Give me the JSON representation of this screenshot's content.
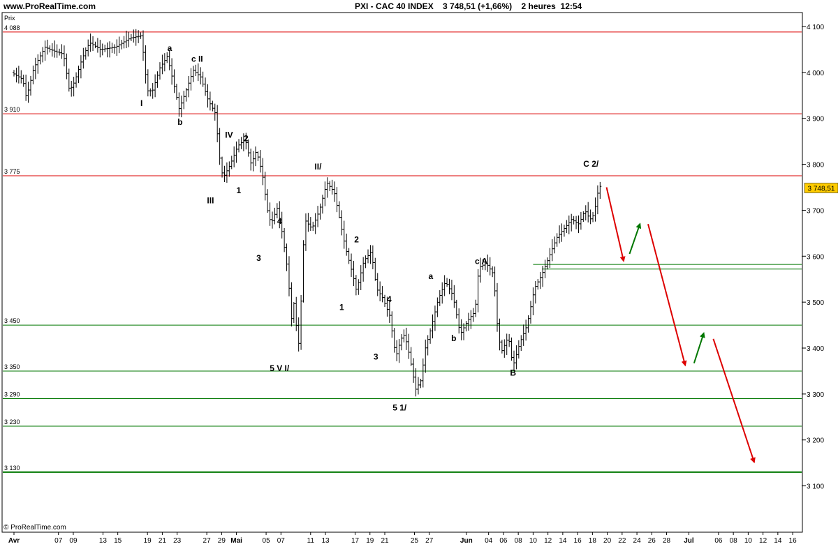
{
  "header": {
    "site": "www.ProRealTime.com",
    "instrument": "PXI - CAC 40 INDEX",
    "price": "3 748,51",
    "change": "(+1,66%)",
    "timeframe": "2 heures",
    "time": "12:54"
  },
  "footer": {
    "copyright": "© ProRealTime.com"
  },
  "chart_data": {
    "type": "candlestick-ohlc",
    "yaxis_title": "Prix",
    "ylim": [
      3090,
      4115
    ],
    "y_ticks": [
      {
        "v": 4100,
        "label": "4 100"
      },
      {
        "v": 4000,
        "label": "4 000"
      },
      {
        "v": 3900,
        "label": "3 900"
      },
      {
        "v": 3800,
        "label": "3 800"
      },
      {
        "v": 3700,
        "label": "3 700"
      },
      {
        "v": 3600,
        "label": "3 600"
      },
      {
        "v": 3500,
        "label": "3 500"
      },
      {
        "v": 3400,
        "label": "3 400"
      },
      {
        "v": 3300,
        "label": "3 300"
      },
      {
        "v": 3200,
        "label": "3 200"
      },
      {
        "v": 3100,
        "label": "3 100"
      }
    ],
    "last_price": {
      "value": 3748.51,
      "label": "3 748,51",
      "color": "#ffcc00"
    },
    "x_ticks": [
      {
        "d": 0,
        "label": "Avr"
      },
      {
        "d": 6,
        "label": "07"
      },
      {
        "d": 8,
        "label": "09"
      },
      {
        "d": 12,
        "label": "13"
      },
      {
        "d": 14,
        "label": "15"
      },
      {
        "d": 18,
        "label": "19"
      },
      {
        "d": 20,
        "label": "21"
      },
      {
        "d": 22,
        "label": "23"
      },
      {
        "d": 26,
        "label": "27"
      },
      {
        "d": 28,
        "label": "29"
      },
      {
        "d": 30,
        "label": "Mai"
      },
      {
        "d": 34,
        "label": "05"
      },
      {
        "d": 36,
        "label": "07"
      },
      {
        "d": 40,
        "label": "11"
      },
      {
        "d": 42,
        "label": "13"
      },
      {
        "d": 46,
        "label": "17"
      },
      {
        "d": 48,
        "label": "19"
      },
      {
        "d": 50,
        "label": "21"
      },
      {
        "d": 54,
        "label": "25"
      },
      {
        "d": 56,
        "label": "27"
      },
      {
        "d": 61,
        "label": "Jun"
      },
      {
        "d": 64,
        "label": "04"
      },
      {
        "d": 66,
        "label": "06"
      },
      {
        "d": 68,
        "label": "08"
      },
      {
        "d": 70,
        "label": "10"
      },
      {
        "d": 72,
        "label": "12"
      },
      {
        "d": 74,
        "label": "14"
      },
      {
        "d": 76,
        "label": "16"
      },
      {
        "d": 78,
        "label": "18"
      },
      {
        "d": 80,
        "label": "20"
      },
      {
        "d": 82,
        "label": "22"
      },
      {
        "d": 84,
        "label": "24"
      },
      {
        "d": 86,
        "label": "26"
      },
      {
        "d": 88,
        "label": "28"
      },
      {
        "d": 91,
        "label": "Jul"
      },
      {
        "d": 95,
        "label": "06"
      },
      {
        "d": 97,
        "label": "08"
      },
      {
        "d": 99,
        "label": "10"
      },
      {
        "d": 101,
        "label": "12"
      },
      {
        "d": 103,
        "label": "14"
      },
      {
        "d": 105,
        "label": "16"
      }
    ],
    "red_levels": [
      {
        "v": 4088,
        "label": "4 088"
      },
      {
        "v": 3910,
        "label": "3 910"
      },
      {
        "v": 3775,
        "label": "3 775"
      }
    ],
    "green_levels": [
      {
        "v": 3450,
        "label": "3 450"
      },
      {
        "v": 3350,
        "label": "3 350"
      },
      {
        "v": 3290,
        "label": "3 290"
      },
      {
        "v": 3230,
        "label": "3 230"
      },
      {
        "v": 3130,
        "label": "3 130"
      }
    ],
    "green_short_levels": [
      {
        "v": 3582,
        "from_d": 70.0
      },
      {
        "v": 3572,
        "from_d": 71.2
      }
    ],
    "price_path": [
      [
        0,
        4000
      ],
      [
        1.5,
        3985
      ],
      [
        2,
        3945
      ],
      [
        3,
        4010
      ],
      [
        4.5,
        4055
      ],
      [
        6,
        4045
      ],
      [
        7,
        4040
      ],
      [
        7.8,
        3960
      ],
      [
        8.5,
        3980
      ],
      [
        9.5,
        4030
      ],
      [
        10.5,
        4065
      ],
      [
        12,
        4050
      ],
      [
        14,
        4055
      ],
      [
        16,
        4075
      ],
      [
        17.5,
        4080
      ],
      [
        18.3,
        3960
      ],
      [
        19,
        3960
      ],
      [
        20,
        4010
      ],
      [
        21,
        4035
      ],
      [
        22,
        3965
      ],
      [
        22.6,
        3920
      ],
      [
        23.5,
        3960
      ],
      [
        24.5,
        4005
      ],
      [
        25.5,
        3990
      ],
      [
        26.5,
        3940
      ],
      [
        27.5,
        3910
      ],
      [
        28,
        3820
      ],
      [
        28.5,
        3770
      ],
      [
        29.5,
        3800
      ],
      [
        30.5,
        3840
      ],
      [
        31.5,
        3855
      ],
      [
        32.3,
        3800
      ],
      [
        33,
        3830
      ],
      [
        33.8,
        3780
      ],
      [
        34.5,
        3700
      ],
      [
        35,
        3670
      ],
      [
        35.8,
        3705
      ],
      [
        36.5,
        3650
      ],
      [
        37.3,
        3560
      ],
      [
        37.7,
        3460
      ],
      [
        38.2,
        3510
      ],
      [
        38.6,
        3380
      ],
      [
        39,
        3490
      ],
      [
        39.5,
        3680
      ],
      [
        40.5,
        3660
      ],
      [
        41.5,
        3700
      ],
      [
        42.5,
        3760
      ],
      [
        43.5,
        3740
      ],
      [
        44,
        3700
      ],
      [
        45,
        3620
      ],
      [
        46,
        3560
      ],
      [
        46.5,
        3525
      ],
      [
        47.5,
        3590
      ],
      [
        48.5,
        3610
      ],
      [
        49.2,
        3530
      ],
      [
        50,
        3510
      ],
      [
        51,
        3470
      ],
      [
        51.8,
        3380
      ],
      [
        52.5,
        3420
      ],
      [
        53,
        3430
      ],
      [
        53.7,
        3380
      ],
      [
        54.5,
        3310
      ],
      [
        55.2,
        3330
      ],
      [
        55.8,
        3400
      ],
      [
        56.5,
        3440
      ],
      [
        57.5,
        3505
      ],
      [
        58.5,
        3545
      ],
      [
        59.5,
        3515
      ],
      [
        60.5,
        3430
      ],
      [
        61.5,
        3460
      ],
      [
        62.5,
        3480
      ],
      [
        63,
        3575
      ],
      [
        64,
        3585
      ],
      [
        65,
        3560
      ],
      [
        65.5,
        3450
      ],
      [
        66,
        3390
      ],
      [
        67,
        3425
      ],
      [
        67.6,
        3360
      ],
      [
        68.5,
        3410
      ],
      [
        69.5,
        3450
      ],
      [
        70.5,
        3530
      ],
      [
        71.5,
        3560
      ],
      [
        72.5,
        3600
      ],
      [
        73.5,
        3640
      ],
      [
        74.5,
        3660
      ],
      [
        75.5,
        3680
      ],
      [
        76.5,
        3670
      ],
      [
        77.3,
        3700
      ],
      [
        78,
        3680
      ],
      [
        78.5,
        3690
      ],
      [
        79.2,
        3752
      ]
    ],
    "wave_labels": [
      {
        "d": 21.0,
        "v": 4047,
        "text": "a"
      },
      {
        "d": 24.7,
        "v": 4023,
        "text": "c II"
      },
      {
        "d": 17.2,
        "v": 3927,
        "text": "I"
      },
      {
        "d": 22.4,
        "v": 3886,
        "text": "b"
      },
      {
        "d": 29.0,
        "v": 3858,
        "text": "IV"
      },
      {
        "d": 31.3,
        "v": 3850,
        "text": "2"
      },
      {
        "d": 41.0,
        "v": 3789,
        "text": "II/"
      },
      {
        "d": 30.3,
        "v": 3737,
        "text": "1"
      },
      {
        "d": 26.5,
        "v": 3715,
        "text": "III"
      },
      {
        "d": 35.8,
        "v": 3670,
        "text": "4"
      },
      {
        "d": 46.2,
        "v": 3630,
        "text": "2"
      },
      {
        "d": 33.0,
        "v": 3590,
        "text": "3"
      },
      {
        "d": 63.0,
        "v": 3583,
        "text": "c A"
      },
      {
        "d": 56.2,
        "v": 3550,
        "text": "a"
      },
      {
        "d": 50.6,
        "v": 3500,
        "text": "4"
      },
      {
        "d": 44.2,
        "v": 3483,
        "text": "1"
      },
      {
        "d": 59.3,
        "v": 3415,
        "text": "b"
      },
      {
        "d": 48.8,
        "v": 3375,
        "text": "3"
      },
      {
        "d": 35.8,
        "v": 3350,
        "text": "5 V I/"
      },
      {
        "d": 67.3,
        "v": 3340,
        "text": "B"
      },
      {
        "d": 52.0,
        "v": 3264,
        "text": "5 1/"
      },
      {
        "d": 77.8,
        "v": 3795,
        "text": "C 2/"
      }
    ],
    "forecast_arrows": [
      {
        "color": "#dd0000",
        "from": [
          79.9,
          3750
        ],
        "to": [
          82.2,
          3590
        ]
      },
      {
        "color": "#007700",
        "from": [
          83.0,
          3605
        ],
        "to": [
          84.4,
          3670
        ]
      },
      {
        "color": "#dd0000",
        "from": [
          85.5,
          3670
        ],
        "to": [
          90.5,
          3363
        ]
      },
      {
        "color": "#007700",
        "from": [
          91.7,
          3367
        ],
        "to": [
          93.0,
          3432
        ]
      },
      {
        "color": "#dd0000",
        "from": [
          94.3,
          3420
        ],
        "to": [
          99.8,
          3152
        ]
      }
    ]
  }
}
